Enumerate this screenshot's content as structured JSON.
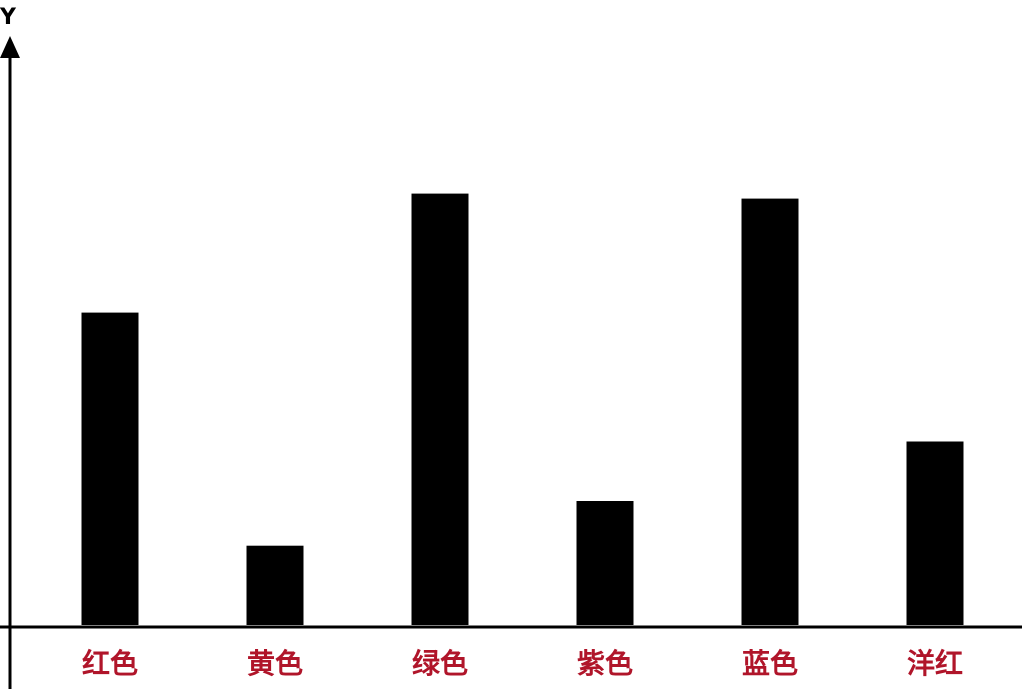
{
  "chart_data": {
    "type": "bar",
    "ylabel": "Y",
    "categories": [
      "红色",
      "黄色",
      "绿色",
      "紫色",
      "蓝色",
      "洋红"
    ],
    "values": [
      6.3,
      1.6,
      8.7,
      2.5,
      8.6,
      3.7
    ],
    "ylim": [
      0,
      12
    ],
    "grid": false,
    "y_tick_labels": false,
    "bar_color": "#000000",
    "label_color": "#b0152a"
  }
}
